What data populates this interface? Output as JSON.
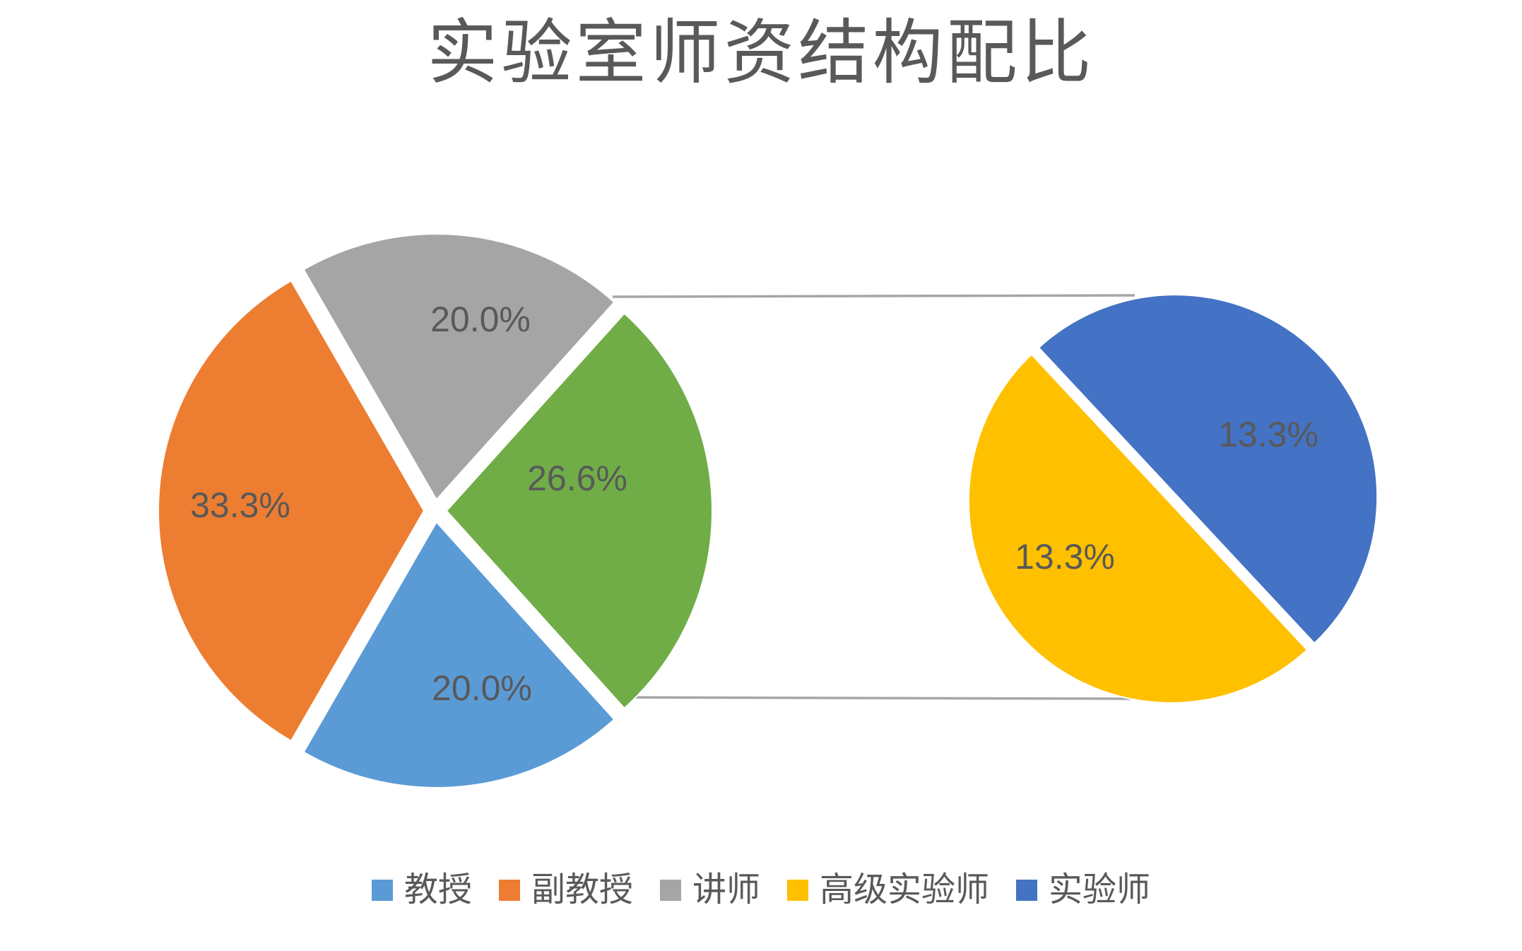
{
  "chart_data": {
    "type": "pie-of-pie",
    "title": "实验室师资结构配比",
    "categories": [
      "教授",
      "副教授",
      "讲师",
      "高级实验师",
      "实验师"
    ],
    "values": [
      20.0,
      33.3,
      20.0,
      13.3,
      13.3
    ],
    "value_unit": "%",
    "data_labels": [
      "20.0%",
      "33.3%",
      "20.0%",
      "13.3%",
      "13.3%"
    ],
    "other_slice": {
      "label": "26.6%",
      "value": 26.6,
      "members": [
        "高级实验师",
        "实验师"
      ]
    },
    "colors": [
      "#5B9BD5",
      "#ED7D31",
      "#A5A5A5",
      "#FFC000",
      "#4472C4"
    ],
    "other_color": "#70AD47",
    "slice_border_color": "#FFFFFF",
    "connector_line_color": "#A6A6A6",
    "label_color": "#595959",
    "title_color": "#595959",
    "legend": {
      "position": "bottom",
      "items": [
        "教授",
        "副教授",
        "讲师",
        "高级实验师",
        "实验师"
      ]
    }
  }
}
